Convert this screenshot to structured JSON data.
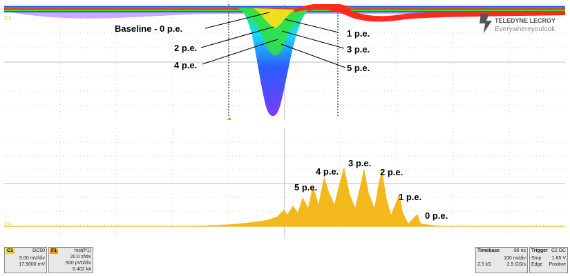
{
  "upper_trace": {
    "channel_marker": "C1",
    "annotations": [
      {
        "id": "baseline",
        "text": "Baseline - 0 p.e."
      },
      {
        "id": "pe1",
        "text": "1 p.e."
      },
      {
        "id": "pe2",
        "text": "2 p.e."
      },
      {
        "id": "pe3",
        "text": "3 p.e."
      },
      {
        "id": "pe4",
        "text": "4 p.e."
      },
      {
        "id": "pe5",
        "text": "5 p.e."
      }
    ],
    "logo": {
      "brand": "TELEDYNE LECROY",
      "tagline": "Everywhereyoulook"
    },
    "colors": {
      "purple": "#7a3cff",
      "blue": "#2a5cff",
      "cyan": "#18d8ff",
      "green": "#33e23b",
      "yellow": "#ffe21b",
      "red": "#ff2a1a"
    }
  },
  "histogram": {
    "trace_marker": "F1",
    "color": "#f2b81c",
    "labels": [
      {
        "id": "h0",
        "text": "0 p.e."
      },
      {
        "id": "h1",
        "text": "1 p.e."
      },
      {
        "id": "h2",
        "text": "2 p.e."
      },
      {
        "id": "h3",
        "text": "3 p.e."
      },
      {
        "id": "h4",
        "text": "4 p.e."
      },
      {
        "id": "h5",
        "text": "5 p.e."
      }
    ]
  },
  "channel_c1": {
    "tag": "C1",
    "coupling": "DC50",
    "vdiv": "5.00 mV/div",
    "offset": "17.5000 mV",
    "color": "#f0d020"
  },
  "function_f1": {
    "tag": "F1",
    "source": "hist(P1)",
    "hdiv": "20.0 #/div",
    "vdiv": "500 pVb/div",
    "count": "6.402 k#",
    "color": "#f0a000"
  },
  "timebase": {
    "title": "Timebase",
    "delay": "-96 ns",
    "tdiv": "100 ns/div",
    "samples": "2.5 kS",
    "rate": "2.5 GS/s"
  },
  "trigger": {
    "title": "Trigger",
    "channel": "C2 DC",
    "mode": "Stop",
    "level": "1.65 V",
    "type": "Edge",
    "slope": "Positive"
  }
}
